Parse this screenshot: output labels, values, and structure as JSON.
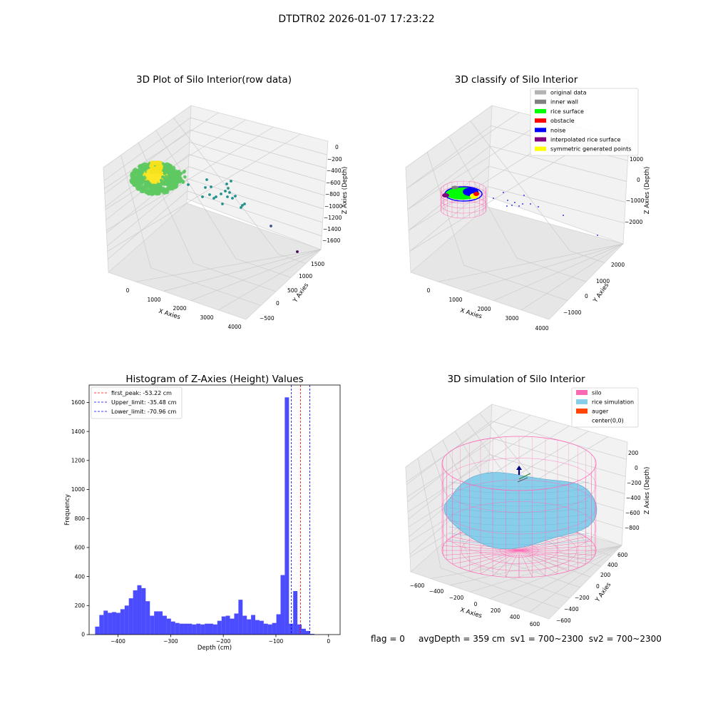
{
  "figure": {
    "suptitle": "DTDTR02 2026-01-07 17:23:22",
    "status": {
      "flag": "flag = 0",
      "avg_depth": "avgDepth = 359 cm",
      "sv1": "sv1 = 700~2300",
      "sv2": "sv2 = 700~2300"
    }
  },
  "chart_data": [
    {
      "type": "scatter3d",
      "title": "3D Plot of Silo Interior(row data)",
      "xlabel": "X Axies",
      "ylabel": "Y Axies",
      "zlabel": "Z Axies (Depth)",
      "x_ticks": [
        "0",
        "1000",
        "2000",
        "3000",
        "4000"
      ],
      "y_ticks": [
        "−500",
        "0",
        "500",
        "1000",
        "1500"
      ],
      "z_ticks": [
        "−1600",
        "−1400",
        "−1200",
        "−1000",
        "−800",
        "−600",
        "−400",
        "−200",
        "0"
      ],
      "colormap": [
        "#440154",
        "#3b528b",
        "#21918c",
        "#5ec962",
        "#fde725"
      ],
      "grid": true
    },
    {
      "type": "scatter3d",
      "title": "3D classify of Silo Interior",
      "xlabel": "X Axies",
      "ylabel": "Y Axies",
      "zlabel": "Z Axies (Depth)",
      "x_ticks": [
        "0",
        "1000",
        "2000",
        "3000",
        "4000"
      ],
      "y_ticks": [
        "−1000",
        "0",
        "1000",
        "2000"
      ],
      "z_ticks": [
        "−2000",
        "−1000",
        "0",
        "1000"
      ],
      "legend_position": "top-right",
      "legend": [
        {
          "label": "original data",
          "color": "#b3b3b3"
        },
        {
          "label": "inner wall",
          "color": "#808080"
        },
        {
          "label": "rice surface",
          "color": "#00ff00"
        },
        {
          "label": "obstacle",
          "color": "#ff0000"
        },
        {
          "label": "noise",
          "color": "#0000ff"
        },
        {
          "label": "interpolated rice surface",
          "color": "#800080"
        },
        {
          "label": "symmetric generated points",
          "color": "#ffff00"
        }
      ],
      "grid": true
    },
    {
      "type": "bar",
      "subtype": "histogram",
      "title": "Histogram of Z-Axies (Height) Values",
      "xlabel": "Depth (cm)",
      "ylabel": "Frequency",
      "xlim": [
        -455,
        22
      ],
      "ylim": [
        0,
        1720
      ],
      "x_ticks": [
        -400,
        -300,
        -200,
        -100,
        0
      ],
      "x_tick_labels": [
        "−400",
        "−300",
        "−200",
        "−100",
        "0"
      ],
      "y_ticks": [
        0,
        200,
        400,
        600,
        800,
        1000,
        1200,
        1400,
        1600
      ],
      "bar_color": "#0000ff",
      "bin_start": -443.6,
      "bin_width": 8.01,
      "values": [
        55,
        135,
        165,
        150,
        155,
        150,
        175,
        200,
        250,
        305,
        340,
        320,
        230,
        130,
        160,
        160,
        130,
        110,
        90,
        80,
        75,
        75,
        75,
        70,
        75,
        70,
        75,
        75,
        70,
        95,
        125,
        130,
        110,
        145,
        240,
        130,
        105,
        135,
        100,
        95,
        75,
        70,
        80,
        140,
        410,
        1635,
        75,
        300,
        70,
        40,
        25,
        5
      ],
      "reference_lines": [
        {
          "label": "first_peak: -53.22 cm",
          "x": -53.22,
          "color": "#ff0000"
        },
        {
          "label": "Upper_limit: -35.48 cm",
          "x": -35.48,
          "color": "#0000ff"
        },
        {
          "label": "Lower_limit: -70.96 cm",
          "x": -70.96,
          "color": "#0000ff"
        }
      ],
      "legend_position": "top-left",
      "grid": false
    },
    {
      "type": "surface3d",
      "title": "3D simulation of Silo Interior",
      "xlabel": "X Axies",
      "ylabel": "Y Axies",
      "zlabel": "Z Axies (Depth)",
      "x_ticks": [
        "−600",
        "−400",
        "−200",
        "0",
        "200",
        "400",
        "600"
      ],
      "y_ticks": [
        "−600",
        "−400",
        "−200",
        "0",
        "200",
        "400",
        "600"
      ],
      "z_ticks": [
        "−800",
        "−600",
        "−400",
        "−200",
        "0",
        "200"
      ],
      "legend_position": "top-right",
      "legend": [
        {
          "label": "silo",
          "color": "#ff69b4"
        },
        {
          "label": "rice simulation",
          "color": "#87ceeb"
        },
        {
          "label": "auger",
          "color": "#ff4500"
        },
        {
          "label": "center(0,0)",
          "color": "#ffffff"
        }
      ],
      "grid": true
    }
  ]
}
